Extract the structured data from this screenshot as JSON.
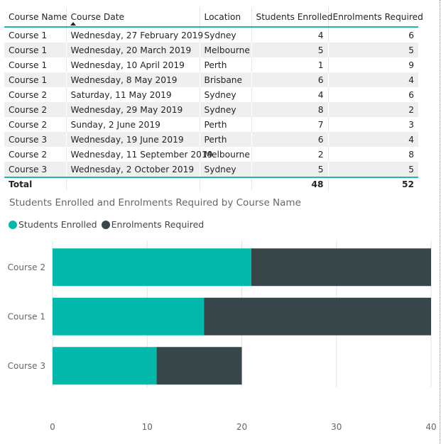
{
  "table": {
    "columns": [
      "Course Name",
      "Course Date",
      "Location",
      "Students Enrolled",
      "Enrolments Required"
    ],
    "rows": [
      [
        "Course 1",
        "Wednesday, 27 February 2019",
        "Sydney",
        "4",
        "6"
      ],
      [
        "Course 1",
        "Wednesday, 20 March 2019",
        "Melbourne",
        "5",
        "5"
      ],
      [
        "Course 1",
        "Wednesday, 10 April 2019",
        "Perth",
        "1",
        "9"
      ],
      [
        "Course 1",
        "Wednesday, 8 May 2019",
        "Brisbane",
        "6",
        "4"
      ],
      [
        "Course 2",
        "Saturday, 11 May 2019",
        "Sydney",
        "4",
        "6"
      ],
      [
        "Course 2",
        "Wednesday, 29 May 2019",
        "Sydney",
        "8",
        "2"
      ],
      [
        "Course 2",
        "Sunday, 2 June 2019",
        "Perth",
        "7",
        "3"
      ],
      [
        "Course 3",
        "Wednesday, 19 June 2019",
        "Perth",
        "6",
        "4"
      ],
      [
        "Course 2",
        "Wednesday, 11 September 2019",
        "Melbourne",
        "2",
        "8"
      ],
      [
        "Course 3",
        "Wednesday, 2 October 2019",
        "Sydney",
        "5",
        "5"
      ]
    ],
    "total": {
      "label": "Total",
      "students_enrolled": "48",
      "enrolments_required": "52"
    },
    "sorted_column": "Course Date",
    "sort_direction": "ascending"
  },
  "chart_data": {
    "type": "bar",
    "orientation": "horizontal",
    "stacked": true,
    "title": "Students Enrolled and Enrolments Required by Course Name",
    "categories": [
      "Course 2",
      "Course 1",
      "Course 3"
    ],
    "series": [
      {
        "name": "Students Enrolled",
        "values": [
          21,
          16,
          11
        ],
        "color": "#01b8aa"
      },
      {
        "name": "Enrolments Required",
        "values": [
          19,
          24,
          9
        ],
        "color": "#374649"
      }
    ],
    "xlim": [
      0,
      40
    ],
    "xticks": [
      "0",
      "10",
      "20",
      "30",
      "40"
    ],
    "grid": true,
    "legend_position": "top-left"
  }
}
